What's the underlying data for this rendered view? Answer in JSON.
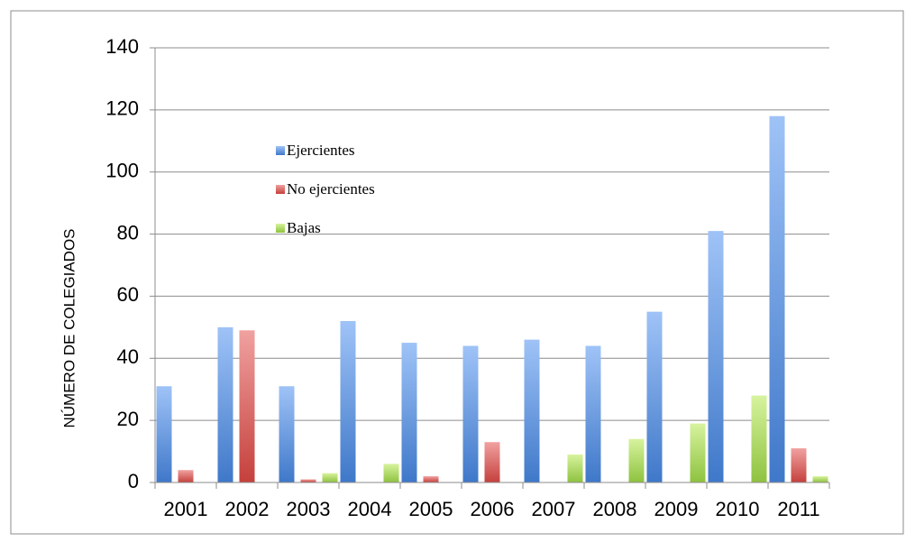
{
  "chart_data": {
    "type": "bar",
    "title": "",
    "xlabel": "",
    "ylabel": "NÚMERO DE COLEGIADOS",
    "ylim": [
      0,
      140
    ],
    "yticks": [
      0,
      20,
      40,
      60,
      80,
      100,
      120,
      140
    ],
    "grid": true,
    "legend_position": "inside-top-left",
    "categories": [
      "2001",
      "2002",
      "2003",
      "2004",
      "2005",
      "2006",
      "2007",
      "2008",
      "2009",
      "2010",
      "2011"
    ],
    "series": [
      {
        "name": "Ejercientes",
        "color": "#4f81bd",
        "values": [
          31,
          50,
          31,
          52,
          45,
          44,
          46,
          44,
          55,
          81,
          118
        ]
      },
      {
        "name": "No ejercientes",
        "color": "#c0504d",
        "values": [
          4,
          49,
          1,
          0,
          2,
          13,
          0,
          0,
          0,
          0,
          11
        ]
      },
      {
        "name": "Bajas",
        "color": "#9bbb59",
        "values": [
          0,
          0,
          3,
          6,
          0,
          0,
          9,
          14,
          19,
          28,
          2
        ]
      }
    ]
  }
}
